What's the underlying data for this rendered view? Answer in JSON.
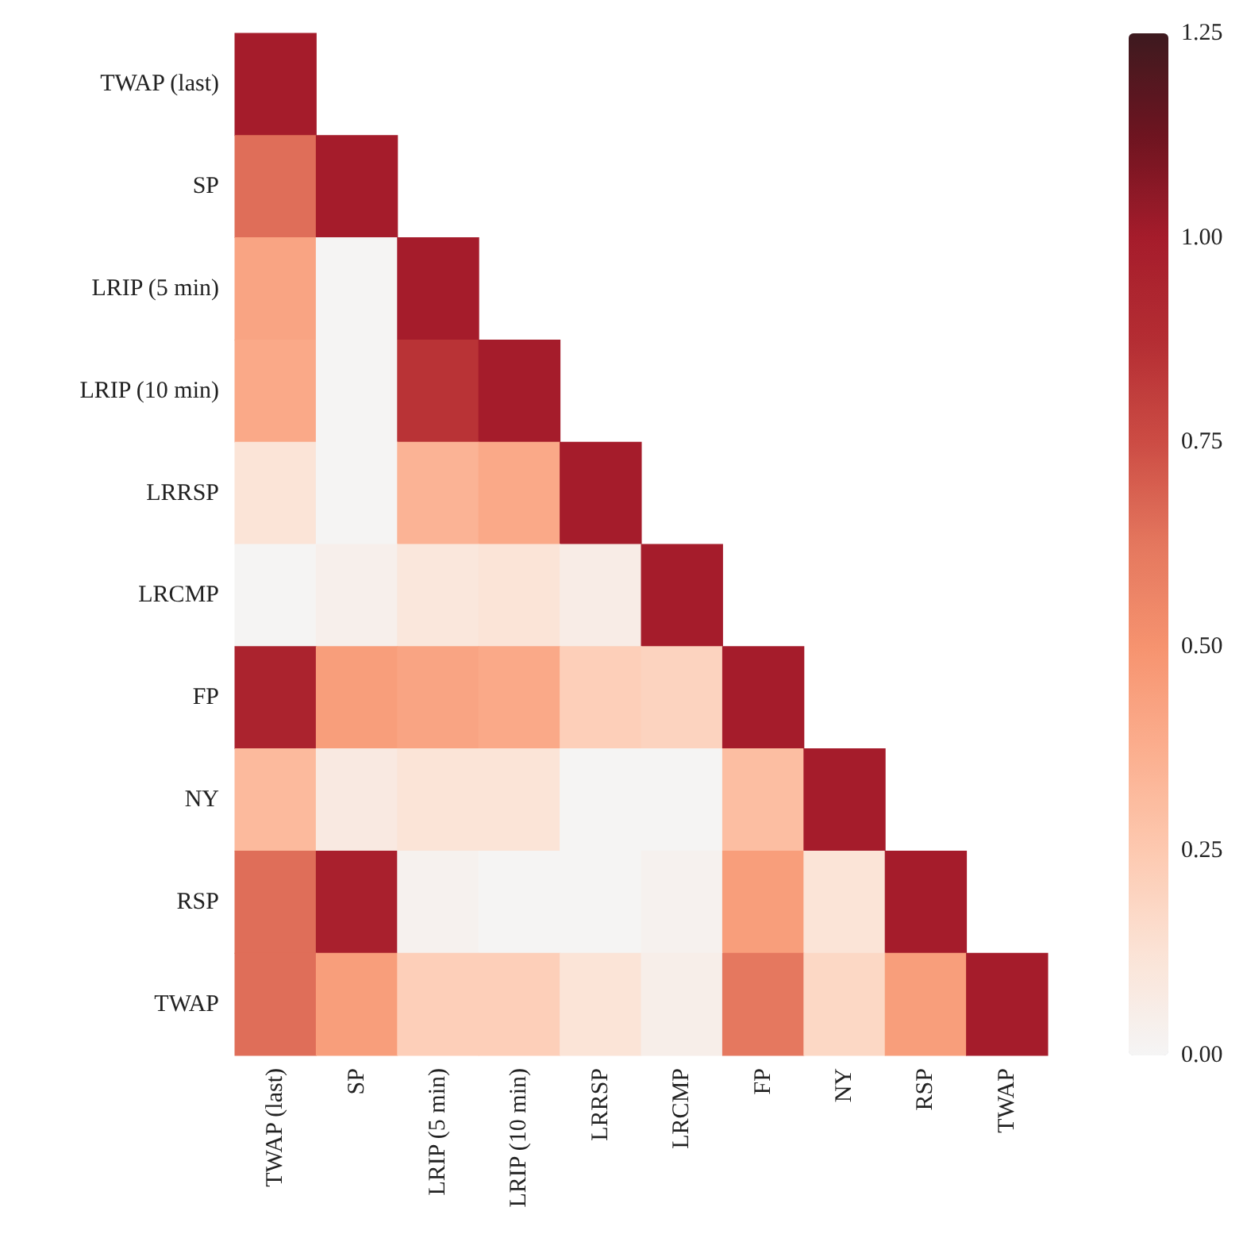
{
  "chart_data": {
    "type": "heatmap",
    "categories": [
      "TWAP (last)",
      "SP",
      "LRIP (5 min)",
      "LRIP (10 min)",
      "LRRSP",
      "LRCMP",
      "FP",
      "NY",
      "RSP",
      "TWAP"
    ],
    "y_categories": [
      "TWAP (last)",
      "SP",
      "LRIP (5 min)",
      "LRIP (10 min)",
      "LRRSP",
      "LRCMP",
      "FP",
      "NY",
      "RSP",
      "TWAP"
    ],
    "cells": [
      [
        1.0,
        null,
        null,
        null,
        null,
        null,
        null,
        null,
        null,
        null
      ],
      [
        0.65,
        1.0,
        null,
        null,
        null,
        null,
        null,
        null,
        null,
        null
      ],
      [
        0.42,
        0.01,
        1.0,
        null,
        null,
        null,
        null,
        null,
        null,
        null
      ],
      [
        0.4,
        0.01,
        0.85,
        1.0,
        null,
        null,
        null,
        null,
        null,
        null
      ],
      [
        0.12,
        0.01,
        0.35,
        0.4,
        1.0,
        null,
        null,
        null,
        null,
        null
      ],
      [
        0.01,
        0.04,
        0.1,
        0.12,
        0.06,
        1.0,
        null,
        null,
        null,
        null
      ],
      [
        0.95,
        0.45,
        0.42,
        0.4,
        0.22,
        0.2,
        1.0,
        null,
        null,
        null
      ],
      [
        0.32,
        0.08,
        0.12,
        0.12,
        0.01,
        0.01,
        0.3,
        1.0,
        null,
        null
      ],
      [
        0.65,
        0.97,
        0.03,
        0.01,
        0.01,
        0.03,
        0.45,
        0.12,
        1.0,
        null
      ],
      [
        0.65,
        0.45,
        0.22,
        0.22,
        0.12,
        0.05,
        0.62,
        0.18,
        0.45,
        1.0
      ]
    ],
    "clim": [
      0,
      1.25
    ],
    "cticks": [
      {
        "value": 0,
        "label": "0.00"
      },
      {
        "value": 0.25,
        "label": "0.25"
      },
      {
        "value": 0.5,
        "label": "0.50"
      },
      {
        "value": 0.75,
        "label": "0.75"
      },
      {
        "value": 1,
        "label": "1.00"
      },
      {
        "value": 1.25,
        "label": "1.25"
      }
    ]
  }
}
